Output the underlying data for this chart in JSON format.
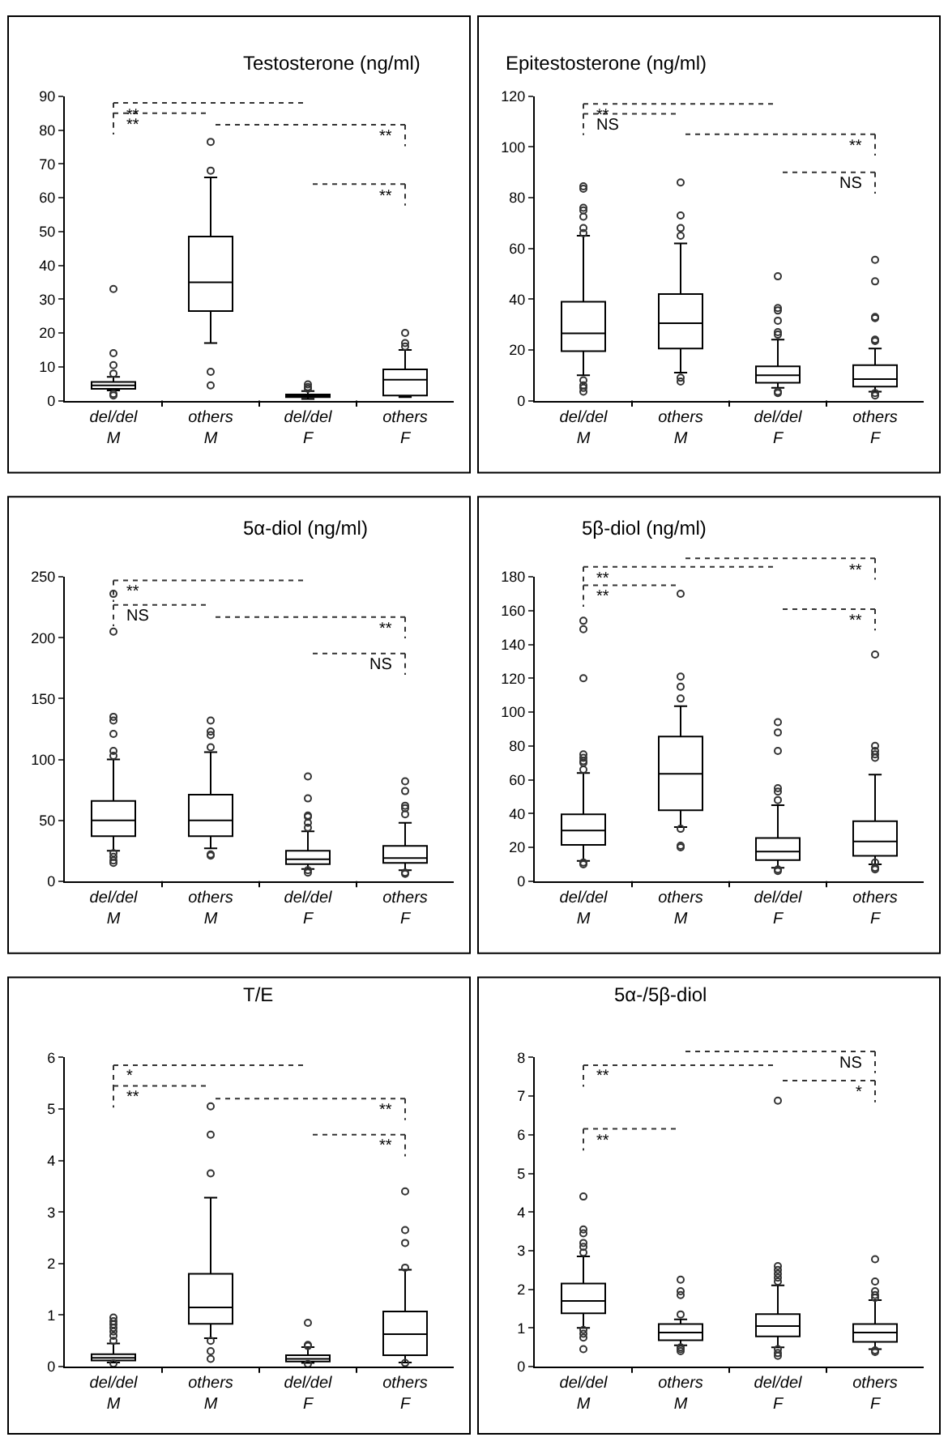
{
  "chart_data": [
    {
      "type": "box",
      "title": "Testosterone (ng/ml)",
      "categories": [
        "del/del\nM",
        "others\nM",
        "del/del\nF",
        "others\nF"
      ],
      "ylim": [
        0,
        90
      ],
      "yticks": [
        0,
        10,
        20,
        30,
        40,
        50,
        60,
        70,
        80,
        90
      ],
      "annotations": [
        "**",
        "**",
        "**",
        "**"
      ],
      "boxes": [
        {
          "low": 3,
          "q1": 3.5,
          "median": 4.5,
          "q3": 5.5,
          "high": 7,
          "outliers": [
            33,
            14,
            10.5,
            8,
            2,
            1.5
          ]
        },
        {
          "low": 17,
          "q1": 26.5,
          "median": 35,
          "q3": 48.5,
          "high": 66,
          "outliers": [
            76.5,
            68,
            8.5,
            4.5
          ]
        },
        {
          "low": 0.5,
          "q1": 1,
          "median": 1.3,
          "q3": 1.8,
          "high": 2.8,
          "outliers": [
            4.8,
            4,
            3.5
          ]
        },
        {
          "low": 1,
          "q1": 1.5,
          "median": 6.2,
          "q3": 9.2,
          "high": 15,
          "outliers": [
            20,
            17,
            16
          ]
        }
      ]
    },
    {
      "type": "box",
      "title": "Epitestosterone (ng/ml)",
      "categories": [
        "del/del\nM",
        "others\nM",
        "del/del\nF",
        "others\nF"
      ],
      "ylim": [
        0,
        120
      ],
      "yticks": [
        0,
        20,
        40,
        60,
        80,
        100,
        120
      ],
      "annotations": [
        "**",
        "NS",
        "**",
        "NS"
      ],
      "boxes": [
        {
          "low": 10,
          "q1": 19.5,
          "median": 26.5,
          "q3": 39,
          "high": 65,
          "outliers": [
            84.5,
            83.5,
            76,
            75,
            72.5,
            68,
            66,
            8,
            6,
            5,
            3.5
          ]
        },
        {
          "low": 11,
          "q1": 20.5,
          "median": 30.5,
          "q3": 42,
          "high": 62,
          "outliers": [
            86,
            73,
            68,
            65,
            9,
            7.5
          ]
        },
        {
          "low": 5,
          "q1": 7,
          "median": 10,
          "q3": 13.5,
          "high": 24,
          "outliers": [
            49,
            36.5,
            35.5,
            31.5,
            27,
            26,
            3.5,
            3
          ]
        },
        {
          "low": 3.5,
          "q1": 5.5,
          "median": 8.5,
          "q3": 14,
          "high": 20.5,
          "outliers": [
            55.5,
            47,
            33,
            32.5,
            24,
            23.5,
            3,
            2
          ]
        }
      ]
    },
    {
      "type": "box",
      "title": "5α-diol (ng/ml)",
      "categories": [
        "del/del\nM",
        "others\nM",
        "del/del\nF",
        "others\nF"
      ],
      "ylim": [
        0,
        250
      ],
      "yticks": [
        0,
        50,
        100,
        150,
        200,
        250
      ],
      "annotations": [
        "**",
        "NS",
        "**",
        "NS"
      ],
      "boxes": [
        {
          "low": 25,
          "q1": 37,
          "median": 50,
          "q3": 66,
          "high": 100,
          "outliers": [
            236,
            205,
            135,
            132,
            121,
            107,
            103,
            23,
            20,
            17,
            15
          ]
        },
        {
          "low": 27,
          "q1": 37,
          "median": 50,
          "q3": 71,
          "high": 106,
          "outliers": [
            132,
            123,
            120,
            110,
            22,
            21
          ]
        },
        {
          "low": 10,
          "q1": 14,
          "median": 18,
          "q3": 25,
          "high": 41,
          "outliers": [
            86,
            68,
            54,
            53,
            48,
            44,
            9,
            7
          ]
        },
        {
          "low": 9,
          "q1": 15,
          "median": 19,
          "q3": 29,
          "high": 48,
          "outliers": [
            82,
            74,
            62,
            60,
            55,
            7,
            6
          ]
        }
      ]
    },
    {
      "type": "box",
      "title": "5β-diol (ng/ml)",
      "categories": [
        "del/del\nM",
        "others\nM",
        "del/del\nF",
        "others\nF"
      ],
      "ylim": [
        0,
        180
      ],
      "yticks": [
        0,
        20,
        40,
        60,
        80,
        100,
        120,
        140,
        160,
        180
      ],
      "annotations": [
        "**",
        "**",
        "**",
        "**"
      ],
      "boxes": [
        {
          "low": 12,
          "q1": 21.5,
          "median": 30,
          "q3": 39.5,
          "high": 64,
          "outliers": [
            154,
            149,
            120,
            75,
            73,
            71,
            70,
            66,
            11,
            10
          ]
        },
        {
          "low": 32,
          "q1": 42,
          "median": 63.5,
          "q3": 85.5,
          "high": 103.5,
          "outliers": [
            170,
            121,
            115,
            108,
            31,
            21,
            20
          ]
        },
        {
          "low": 8,
          "q1": 12.5,
          "median": 17.5,
          "q3": 25.5,
          "high": 45,
          "outliers": [
            94,
            88,
            77,
            55,
            53,
            48,
            7,
            6
          ]
        },
        {
          "low": 10,
          "q1": 15,
          "median": 23.5,
          "q3": 35.5,
          "high": 63,
          "outliers": [
            134,
            80,
            77,
            75,
            73,
            11,
            8,
            7
          ]
        }
      ]
    },
    {
      "type": "box",
      "title": "T/E",
      "categories": [
        "del/del\nM",
        "others\nM",
        "del/del\nF",
        "others\nF"
      ],
      "ylim": [
        0,
        6
      ],
      "yticks": [
        0,
        1,
        2,
        3,
        4,
        5,
        6
      ],
      "annotations": [
        "*",
        "**",
        "**",
        "**"
      ],
      "boxes": [
        {
          "low": 0.08,
          "q1": 0.12,
          "median": 0.17,
          "q3": 0.24,
          "high": 0.45,
          "outliers": [
            0.95,
            0.88,
            0.82,
            0.75,
            0.68,
            0.6,
            0.5,
            0.06
          ]
        },
        {
          "low": 0.55,
          "q1": 0.83,
          "median": 1.15,
          "q3": 1.8,
          "high": 3.28,
          "outliers": [
            5.05,
            4.5,
            3.75,
            0.5,
            0.3,
            0.15
          ]
        },
        {
          "low": 0.07,
          "q1": 0.1,
          "median": 0.15,
          "q3": 0.22,
          "high": 0.38,
          "outliers": [
            0.85,
            0.42,
            0.4,
            0.05
          ]
        },
        {
          "low": 0.08,
          "q1": 0.22,
          "median": 0.63,
          "q3": 1.07,
          "high": 1.88,
          "outliers": [
            3.4,
            2.65,
            2.4,
            1.92,
            0.07
          ]
        }
      ]
    },
    {
      "type": "box",
      "title": "5α-/5β-diol",
      "categories": [
        "del/del\nM",
        "others\nM",
        "del/del\nF",
        "others\nF"
      ],
      "ylim": [
        0,
        8
      ],
      "yticks": [
        0,
        1,
        2,
        3,
        4,
        5,
        6,
        7,
        8
      ],
      "annotations": [
        "**",
        "**",
        "NS",
        "*"
      ],
      "boxes": [
        {
          "low": 1.0,
          "q1": 1.38,
          "median": 1.7,
          "q3": 2.15,
          "high": 2.85,
          "outliers": [
            4.4,
            3.55,
            3.45,
            3.2,
            3.1,
            2.95,
            0.95,
            0.85,
            0.75,
            0.45
          ]
        },
        {
          "low": 0.55,
          "q1": 0.68,
          "median": 0.88,
          "q3": 1.1,
          "high": 1.22,
          "outliers": [
            2.25,
            1.95,
            1.85,
            1.35,
            0.5,
            0.45,
            0.4
          ]
        },
        {
          "low": 0.5,
          "q1": 0.78,
          "median": 1.05,
          "q3": 1.36,
          "high": 2.1,
          "outliers": [
            6.88,
            2.6,
            2.5,
            2.4,
            2.3,
            2.2,
            0.45,
            0.35,
            0.28
          ]
        },
        {
          "low": 0.45,
          "q1": 0.64,
          "median": 0.88,
          "q3": 1.1,
          "high": 1.72,
          "outliers": [
            2.78,
            2.2,
            1.95,
            1.85,
            1.78,
            0.42,
            0.38
          ]
        }
      ]
    }
  ]
}
